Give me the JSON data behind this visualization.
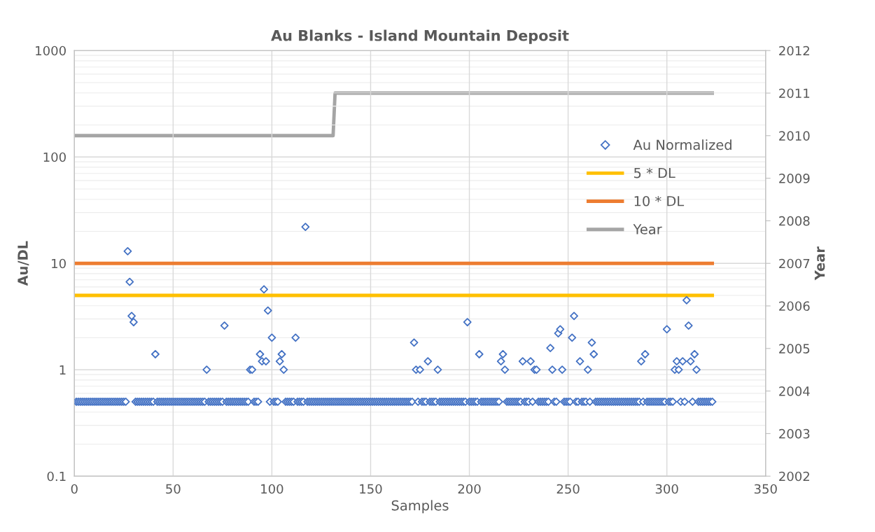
{
  "chart_data": {
    "type": "scatter",
    "title": "Au Blanks - Island Mountain Deposit",
    "xlabel": "Samples",
    "ylabel": "Au/DL",
    "y2label": "Year",
    "log": "y",
    "grid": true,
    "legend": "top right",
    "xlim": [
      0,
      350
    ],
    "xticks": [
      0,
      50,
      100,
      150,
      200,
      250,
      300,
      350
    ],
    "ylim": [
      0.1,
      1000
    ],
    "yticks": [
      0.1,
      1,
      10,
      100,
      1000
    ],
    "y2lim": [
      2002,
      2012
    ],
    "y2ticks": [
      2002,
      2003,
      2004,
      2005,
      2006,
      2007,
      2008,
      2009,
      2010,
      2011,
      2012
    ],
    "series": [
      {
        "name": "Au Normalized",
        "marker": "diamond",
        "color": "#4472c4",
        "x": [
          1,
          2,
          3,
          4,
          5,
          6,
          7,
          8,
          9,
          10,
          11,
          12,
          13,
          14,
          15,
          16,
          17,
          18,
          19,
          20,
          21,
          22,
          23,
          24,
          25,
          26,
          27,
          28,
          29,
          30,
          31,
          32,
          33,
          34,
          35,
          36,
          37,
          38,
          39,
          40,
          41,
          42,
          43,
          44,
          45,
          46,
          47,
          48,
          49,
          50,
          51,
          52,
          53,
          54,
          55,
          56,
          57,
          58,
          59,
          60,
          61,
          62,
          63,
          64,
          65,
          66,
          67,
          68,
          69,
          70,
          71,
          72,
          73,
          74,
          75,
          76,
          77,
          78,
          79,
          80,
          81,
          82,
          83,
          84,
          85,
          86,
          87,
          88,
          89,
          90,
          91,
          92,
          93,
          94,
          95,
          96,
          97,
          98,
          99,
          100,
          101,
          102,
          103,
          104,
          105,
          106,
          107,
          108,
          109,
          110,
          111,
          112,
          113,
          114,
          115,
          116,
          117,
          118,
          119,
          120,
          121,
          122,
          123,
          124,
          125,
          126,
          127,
          128,
          129,
          130,
          131,
          132,
          133,
          134,
          135,
          136,
          137,
          138,
          139,
          140,
          141,
          142,
          143,
          144,
          145,
          146,
          147,
          148,
          149,
          150,
          151,
          152,
          153,
          154,
          155,
          156,
          157,
          158,
          159,
          160,
          161,
          162,
          163,
          164,
          165,
          166,
          167,
          168,
          169,
          170,
          171,
          172,
          173,
          174,
          175,
          176,
          177,
          178,
          179,
          180,
          181,
          182,
          183,
          184,
          185,
          186,
          187,
          188,
          189,
          190,
          191,
          192,
          193,
          194,
          195,
          196,
          197,
          198,
          199,
          200,
          201,
          202,
          203,
          204,
          205,
          206,
          207,
          208,
          209,
          210,
          211,
          212,
          213,
          214,
          215,
          216,
          217,
          218,
          219,
          220,
          221,
          222,
          223,
          224,
          225,
          226,
          227,
          228,
          229,
          230,
          231,
          232,
          233,
          234,
          235,
          236,
          237,
          238,
          239,
          240,
          241,
          242,
          243,
          244,
          245,
          246,
          247,
          248,
          249,
          250,
          251,
          252,
          253,
          254,
          255,
          256,
          257,
          258,
          259,
          260,
          261,
          262,
          263,
          264,
          265,
          266,
          267,
          268,
          269,
          270,
          271,
          272,
          273,
          274,
          275,
          276,
          277,
          278,
          279,
          280,
          281,
          282,
          283,
          284,
          285,
          286,
          287,
          288,
          289,
          290,
          291,
          292,
          293,
          294,
          295,
          296,
          297,
          298,
          299,
          300,
          301,
          302,
          303,
          304,
          305,
          306,
          307,
          308,
          309,
          310,
          311,
          312,
          313,
          314,
          315,
          316,
          317,
          318,
          319,
          320,
          321,
          322,
          323
        ],
        "values": [
          0.5,
          0.5,
          0.5,
          0.5,
          0.5,
          0.5,
          0.5,
          0.5,
          0.5,
          0.5,
          0.5,
          0.5,
          0.5,
          0.5,
          0.5,
          0.5,
          0.5,
          0.5,
          0.5,
          0.5,
          0.5,
          0.5,
          0.5,
          0.5,
          0.5,
          0.5,
          13,
          6.7,
          3.2,
          2.8,
          0.5,
          0.5,
          0.5,
          0.5,
          0.5,
          0.5,
          0.5,
          0.5,
          0.5,
          0.5,
          1.4,
          0.5,
          0.5,
          0.5,
          0.5,
          0.5,
          0.5,
          0.5,
          0.5,
          0.5,
          0.5,
          0.5,
          0.5,
          0.5,
          0.5,
          0.5,
          0.5,
          0.5,
          0.5,
          0.5,
          0.5,
          0.5,
          0.5,
          0.5,
          0.5,
          0.5,
          1,
          0.5,
          0.5,
          0.5,
          0.5,
          0.5,
          0.5,
          0.5,
          0.5,
          2.6,
          0.5,
          0.5,
          0.5,
          0.5,
          0.5,
          0.5,
          0.5,
          0.5,
          0.5,
          0.5,
          0.5,
          0.5,
          1,
          1,
          0.5,
          0.5,
          0.5,
          1.4,
          1.2,
          5.7,
          1.2,
          3.6,
          0.5,
          2,
          0.5,
          0.5,
          0.5,
          1.2,
          1.4,
          1,
          0.5,
          0.5,
          0.5,
          0.5,
          0.5,
          2,
          0.5,
          0.5,
          0.5,
          0.5,
          22,
          0.5,
          0.5,
          0.5,
          0.5,
          0.5,
          0.5,
          0.5,
          0.5,
          0.5,
          0.5,
          0.5,
          0.5,
          0.5,
          0.5,
          0.5,
          0.5,
          0.5,
          0.5,
          0.5,
          0.5,
          0.5,
          0.5,
          0.5,
          0.5,
          0.5,
          0.5,
          0.5,
          0.5,
          0.5,
          0.5,
          0.5,
          0.5,
          0.5,
          0.5,
          0.5,
          0.5,
          0.5,
          0.5,
          0.5,
          0.5,
          0.5,
          0.5,
          0.5,
          0.5,
          0.5,
          0.5,
          0.5,
          0.5,
          0.5,
          0.5,
          0.5,
          0.5,
          0.5,
          0.5,
          1.8,
          1,
          0.5,
          1,
          0.5,
          0.5,
          0.5,
          1.2,
          0.5,
          0.5,
          0.5,
          0.5,
          1,
          0.5,
          0.5,
          0.5,
          0.5,
          0.5,
          0.5,
          0.5,
          0.5,
          0.5,
          0.5,
          0.5,
          0.5,
          0.5,
          0.5,
          2.8,
          0.5,
          0.5,
          0.5,
          0.5,
          0.5,
          1.4,
          0.5,
          0.5,
          0.5,
          0.5,
          0.5,
          0.5,
          0.5,
          0.5,
          0.5,
          0.5,
          1.2,
          1.4,
          1,
          0.5,
          0.5,
          0.5,
          0.5,
          0.5,
          0.5,
          0.5,
          0.5,
          1.2,
          0.5,
          0.5,
          0.5,
          1.2,
          0.5,
          1,
          1,
          0.5,
          0.5,
          0.5,
          0.5,
          0.5,
          0.5,
          1.6,
          1,
          0.5,
          0.5,
          2.2,
          2.4,
          1,
          0.5,
          0.5,
          0.5,
          0.5,
          2,
          3.2,
          0.5,
          0.5,
          1.2,
          0.5,
          0.5,
          0.5,
          1,
          0.5,
          1.8,
          1.4,
          0.5,
          0.5,
          0.5,
          0.5,
          0.5,
          0.5,
          0.5,
          0.5,
          0.5,
          0.5,
          0.5,
          0.5,
          0.5,
          0.5,
          0.5,
          0.5,
          0.5,
          0.5,
          0.5,
          0.5,
          0.5,
          0.5,
          0.5,
          1.2,
          0.5,
          1.4,
          0.5,
          0.5,
          0.5,
          0.5,
          0.5,
          0.5,
          0.5,
          0.5,
          0.5,
          0.5,
          2.4,
          0.5,
          0.5,
          0.5,
          1,
          1.2,
          1,
          0.5,
          1.2,
          0.5,
          4.5,
          2.6,
          1.2,
          0.5,
          1.4,
          1,
          0.5,
          0.5,
          0.5,
          0.5,
          0.5,
          0.5,
          0.5,
          0.5
        ]
      },
      {
        "name": "5 * DL",
        "type": "line",
        "color": "#ffc000",
        "x": [
          1,
          323
        ],
        "values": [
          5,
          5
        ]
      },
      {
        "name": "10 * DL",
        "type": "line",
        "color": "#ed7d31",
        "x": [
          1,
          323
        ],
        "values": [
          10,
          10
        ]
      },
      {
        "name": "Year",
        "type": "line",
        "axis": "y2",
        "color": "#a5a5a5",
        "x": [
          1,
          131,
          132,
          323
        ],
        "values": [
          2010,
          2010,
          2011,
          2011
        ]
      }
    ]
  }
}
